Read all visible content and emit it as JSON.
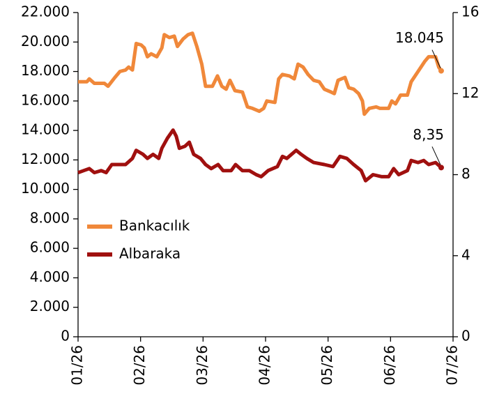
{
  "chart_data": {
    "type": "line",
    "xlim": [
      0,
      6
    ],
    "xticks": [
      {
        "value": 0,
        "label": "01/26"
      },
      {
        "value": 1,
        "label": "02/26"
      },
      {
        "value": 2,
        "label": "03/26"
      },
      {
        "value": 3,
        "label": "04/26"
      },
      {
        "value": 4,
        "label": "05/26"
      },
      {
        "value": 5,
        "label": "06/26"
      },
      {
        "value": 6,
        "label": "07/26"
      }
    ],
    "ylim": [
      0,
      22000
    ],
    "yticks": [
      0,
      {
        "value": 2000,
        "label": "2.000"
      },
      {
        "value": 4000,
        "label": "4.000"
      },
      {
        "value": 6000,
        "label": "6.000"
      },
      {
        "value": 8000,
        "label": "8.000"
      },
      {
        "value": 10000,
        "label": "10.000"
      },
      {
        "value": 12000,
        "label": "12.000"
      },
      {
        "value": 14000,
        "label": "14.000"
      },
      {
        "value": 16000,
        "label": "16.000"
      },
      {
        "value": 18000,
        "label": "18.000"
      },
      {
        "value": 20000,
        "label": "20.000"
      },
      {
        "value": 22000,
        "label": "22.000"
      }
    ],
    "y2lim": [
      0,
      16
    ],
    "y2ticks": [
      0,
      4,
      8,
      12,
      16
    ],
    "legend": "left",
    "series": [
      {
        "name": "Bankacılık",
        "color": "#f0883a",
        "axis": "y",
        "x": [
          0,
          0.14,
          0.18,
          0.26,
          0.42,
          0.48,
          0.59,
          0.67,
          0.76,
          0.81,
          0.87,
          0.93,
          1.01,
          1.06,
          1.11,
          1.17,
          1.26,
          1.34,
          1.38,
          1.46,
          1.54,
          1.59,
          1.68,
          1.76,
          1.83,
          1.9,
          1.98,
          2.04,
          2.15,
          2.23,
          2.3,
          2.37,
          2.43,
          2.51,
          2.63,
          2.71,
          2.79,
          2.9,
          2.97,
          3.02,
          3.15,
          3.21,
          3.27,
          3.38,
          3.46,
          3.52,
          3.6,
          3.68,
          3.77,
          3.86,
          3.94,
          4.05,
          4.1,
          4.16,
          4.27,
          4.33,
          4.41,
          4.49,
          4.55,
          4.58,
          4.66,
          4.77,
          4.83,
          4.97,
          5.02,
          5.08,
          5.16,
          5.27,
          5.33,
          5.44,
          5.55,
          5.61,
          5.72,
          5.77,
          5.81
        ],
        "values": [
          17300,
          17300,
          17500,
          17200,
          17200,
          17000,
          17600,
          18000,
          18100,
          18300,
          18100,
          19900,
          19800,
          19600,
          19000,
          19200,
          19000,
          19600,
          20500,
          20300,
          20400,
          19700,
          20200,
          20500,
          20600,
          19700,
          18500,
          17000,
          17000,
          17700,
          17000,
          16800,
          17400,
          16700,
          16600,
          15600,
          15500,
          15300,
          15500,
          16000,
          15900,
          17500,
          17800,
          17700,
          17500,
          18500,
          18300,
          17800,
          17400,
          17300,
          16800,
          16600,
          16500,
          17400,
          17600,
          16900,
          16800,
          16500,
          16000,
          15100,
          15500,
          15600,
          15500,
          15500,
          16000,
          15800,
          16400,
          16400,
          17300,
          18000,
          18700,
          19000,
          19000,
          18300,
          18045
        ]
      },
      {
        "name": "Albaraka",
        "color": "#a0100f",
        "axis": "y2",
        "x": [
          0,
          0.09,
          0.18,
          0.26,
          0.37,
          0.45,
          0.54,
          0.65,
          0.76,
          0.87,
          0.93,
          1.04,
          1.11,
          1.2,
          1.29,
          1.34,
          1.43,
          1.52,
          1.57,
          1.62,
          1.71,
          1.78,
          1.85,
          1.96,
          2.04,
          2.13,
          2.24,
          2.32,
          2.45,
          2.52,
          2.63,
          2.74,
          2.85,
          2.93,
          3.04,
          3.19,
          3.27,
          3.34,
          3.49,
          3.57,
          3.66,
          3.77,
          3.94,
          4.08,
          4.19,
          4.3,
          4.41,
          4.53,
          4.6,
          4.72,
          4.86,
          4.97,
          5.05,
          5.13,
          5.27,
          5.33,
          5.44,
          5.53,
          5.61,
          5.72,
          5.81
        ],
        "values": [
          8.1,
          8.2,
          8.3,
          8.1,
          8.2,
          8.1,
          8.5,
          8.5,
          8.5,
          8.8,
          9.2,
          9.0,
          8.8,
          9.0,
          8.8,
          9.3,
          9.8,
          10.2,
          9.9,
          9.3,
          9.4,
          9.6,
          9.0,
          8.8,
          8.5,
          8.3,
          8.5,
          8.2,
          8.2,
          8.5,
          8.2,
          8.2,
          8.0,
          7.9,
          8.2,
          8.4,
          8.9,
          8.8,
          9.2,
          9.0,
          8.8,
          8.6,
          8.5,
          8.4,
          8.9,
          8.8,
          8.5,
          8.2,
          7.7,
          8.0,
          7.9,
          7.9,
          8.3,
          8.0,
          8.2,
          8.7,
          8.6,
          8.7,
          8.5,
          8.6,
          8.35
        ]
      }
    ],
    "annotations": [
      {
        "text": "18.045",
        "series": 0
      },
      {
        "text": "8,35",
        "series": 1
      }
    ]
  }
}
